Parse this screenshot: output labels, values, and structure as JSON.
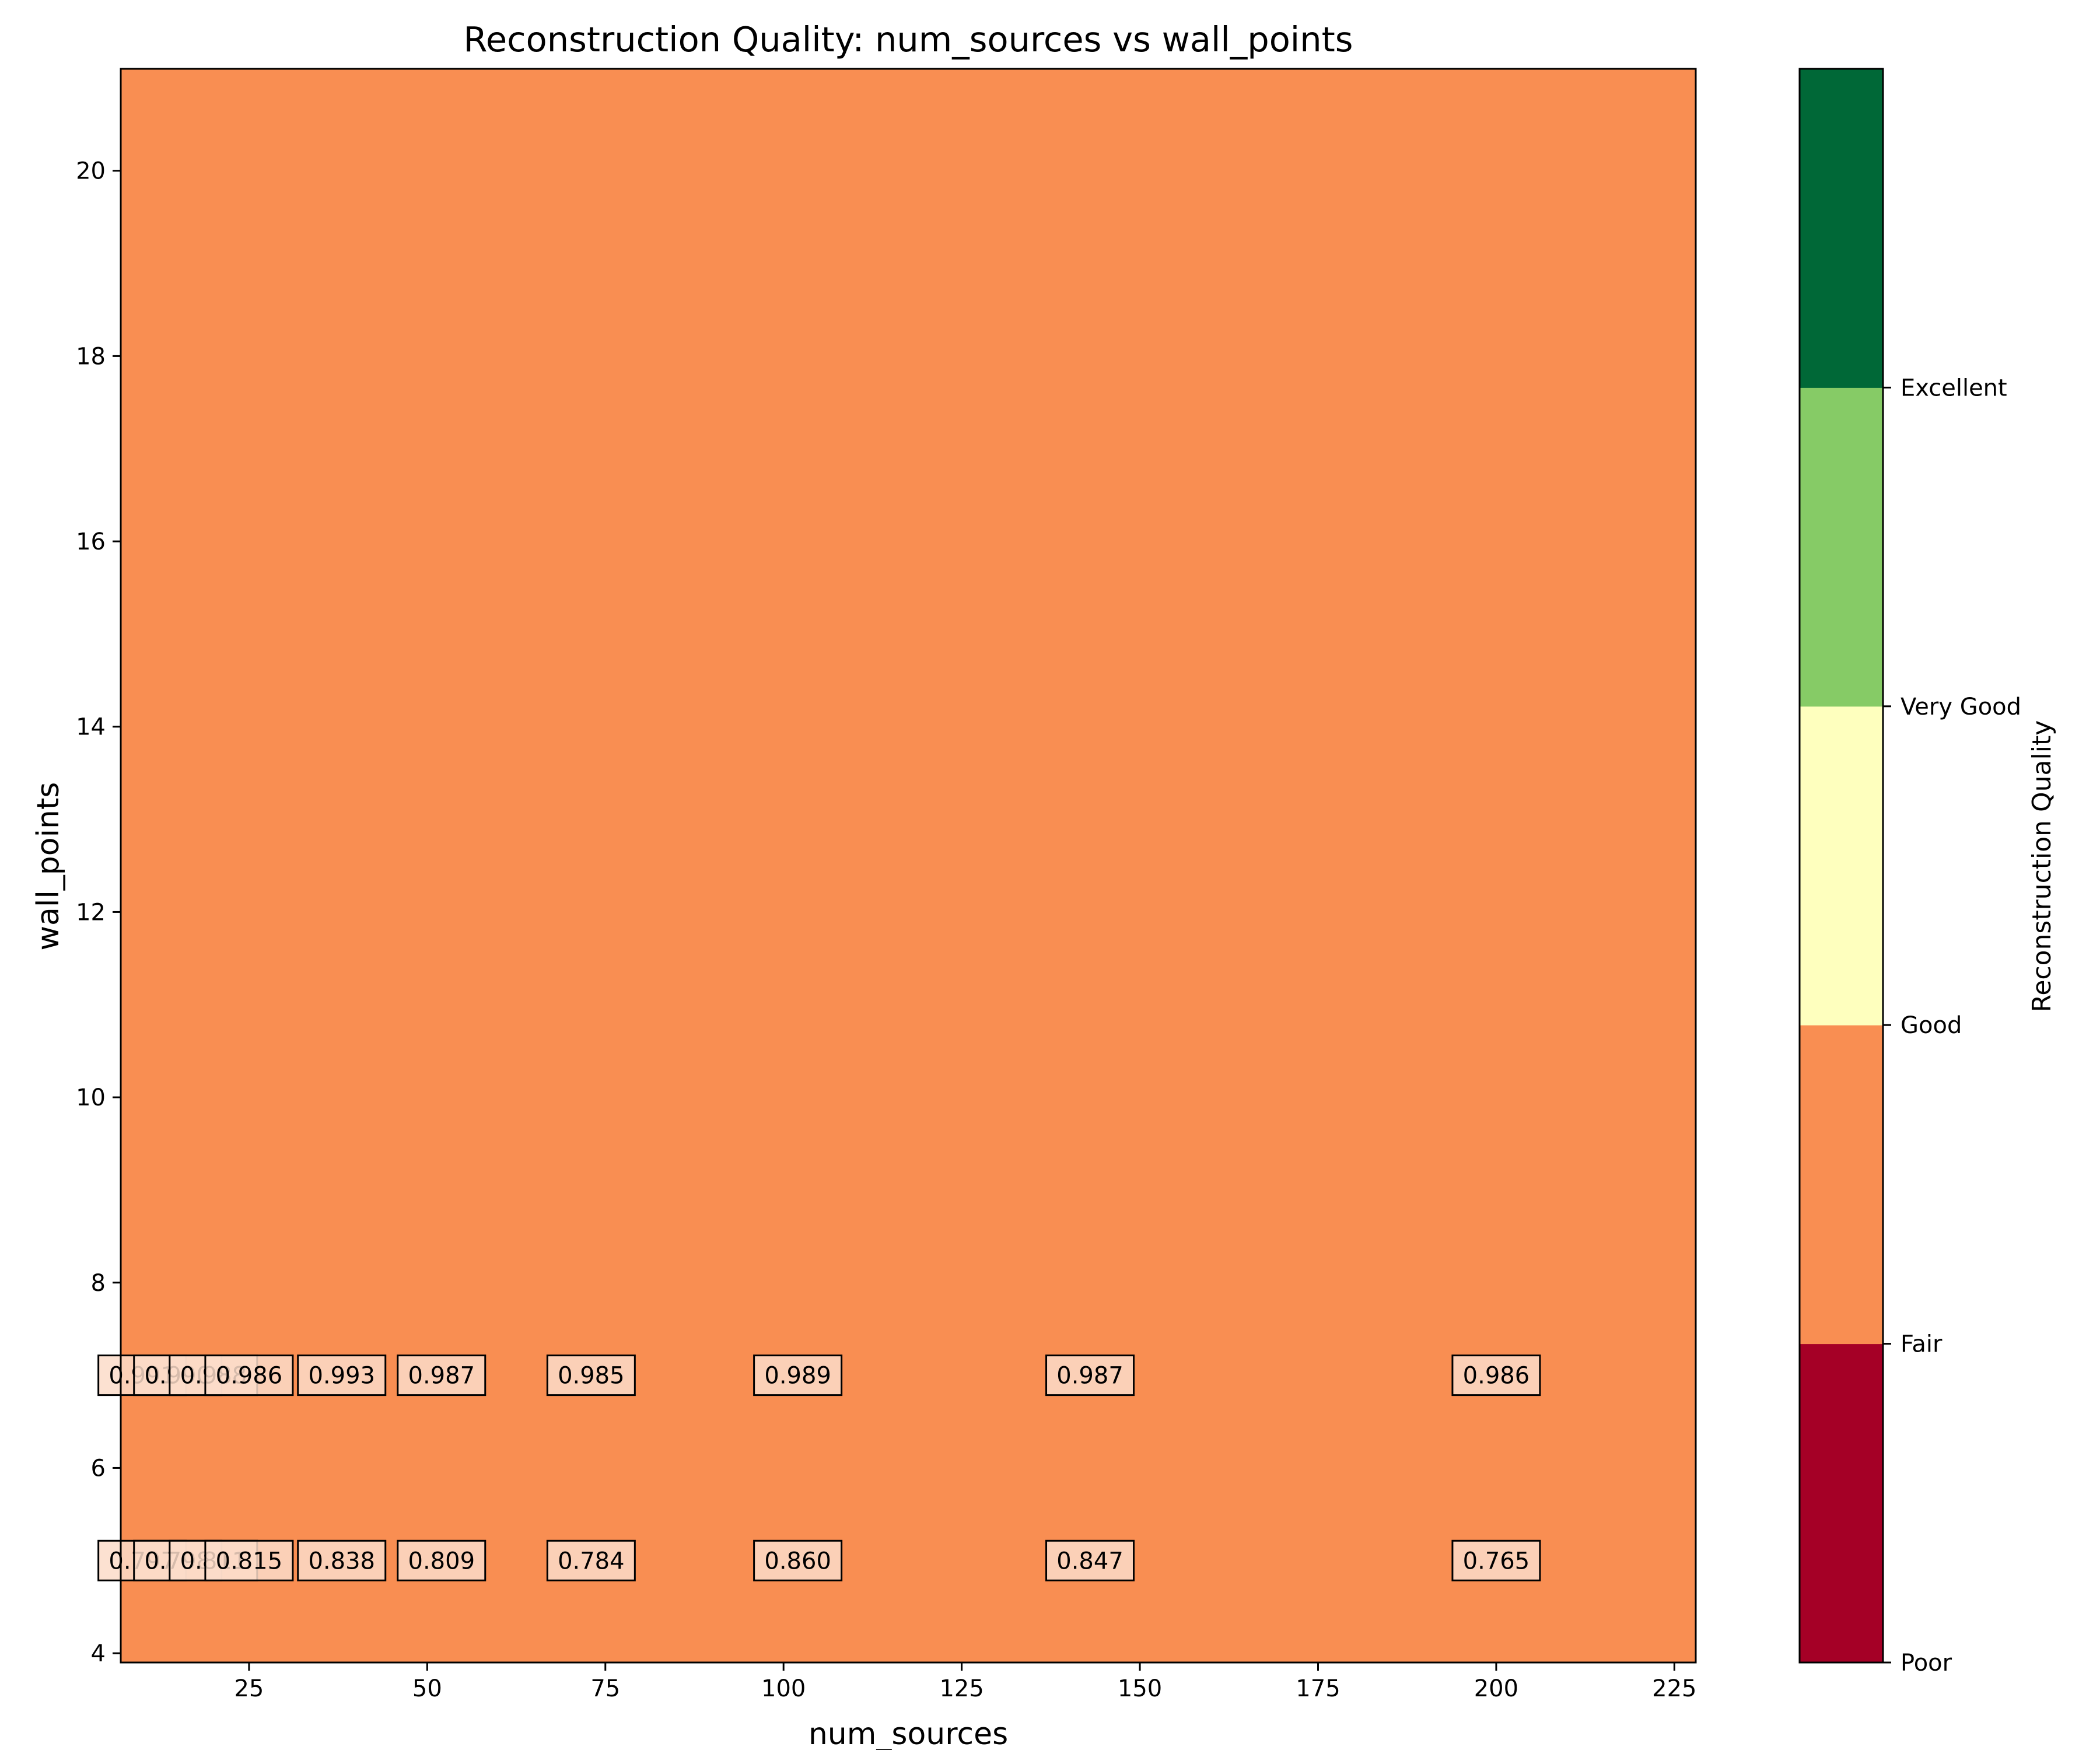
{
  "chart_data": {
    "type": "heatmap",
    "title": "Reconstruction Quality: num_sources vs wall_points",
    "xlabel": "num_sources",
    "ylabel": "wall_points",
    "xlim": [
      7,
      228
    ],
    "ylim": [
      3.9,
      21.1
    ],
    "xticks": [
      25,
      50,
      75,
      100,
      125,
      150,
      175,
      200,
      225
    ],
    "yticks": [
      4,
      6,
      8,
      10,
      12,
      14,
      16,
      18,
      20
    ],
    "grid": false,
    "background_color": "#f98e52",
    "label_box_color": "#fbdcc9",
    "cells": [
      {
        "x": 10,
        "y": 7,
        "label": "0.991"
      },
      {
        "x": 15,
        "y": 7,
        "label": "0.990"
      },
      {
        "x": 20,
        "y": 7,
        "label": "0.988"
      },
      {
        "x": 25,
        "y": 7,
        "label": "0.986"
      },
      {
        "x": 38,
        "y": 7,
        "label": "0.993"
      },
      {
        "x": 52,
        "y": 7,
        "label": "0.987"
      },
      {
        "x": 73,
        "y": 7,
        "label": "0.985"
      },
      {
        "x": 102,
        "y": 7,
        "label": "0.989"
      },
      {
        "x": 143,
        "y": 7,
        "label": "0.987"
      },
      {
        "x": 200,
        "y": 7,
        "label": "0.986"
      },
      {
        "x": 10,
        "y": 5,
        "label": "0.797"
      },
      {
        "x": 15,
        "y": 5,
        "label": "0.798"
      },
      {
        "x": 20,
        "y": 5,
        "label": "0.811"
      },
      {
        "x": 25,
        "y": 5,
        "label": "0.815"
      },
      {
        "x": 38,
        "y": 5,
        "label": "0.838"
      },
      {
        "x": 52,
        "y": 5,
        "label": "0.809"
      },
      {
        "x": 73,
        "y": 5,
        "label": "0.784"
      },
      {
        "x": 102,
        "y": 5,
        "label": "0.860"
      },
      {
        "x": 143,
        "y": 5,
        "label": "0.847"
      },
      {
        "x": 200,
        "y": 5,
        "label": "0.765"
      }
    ],
    "colorbar": {
      "label": "Reconstruction Quality",
      "ticks": [
        "Poor",
        "Fair",
        "Good",
        "Very Good",
        "Excellent"
      ],
      "colors": [
        "#a50026",
        "#f98e52",
        "#feffbe",
        "#86cb66",
        "#006837"
      ]
    }
  }
}
